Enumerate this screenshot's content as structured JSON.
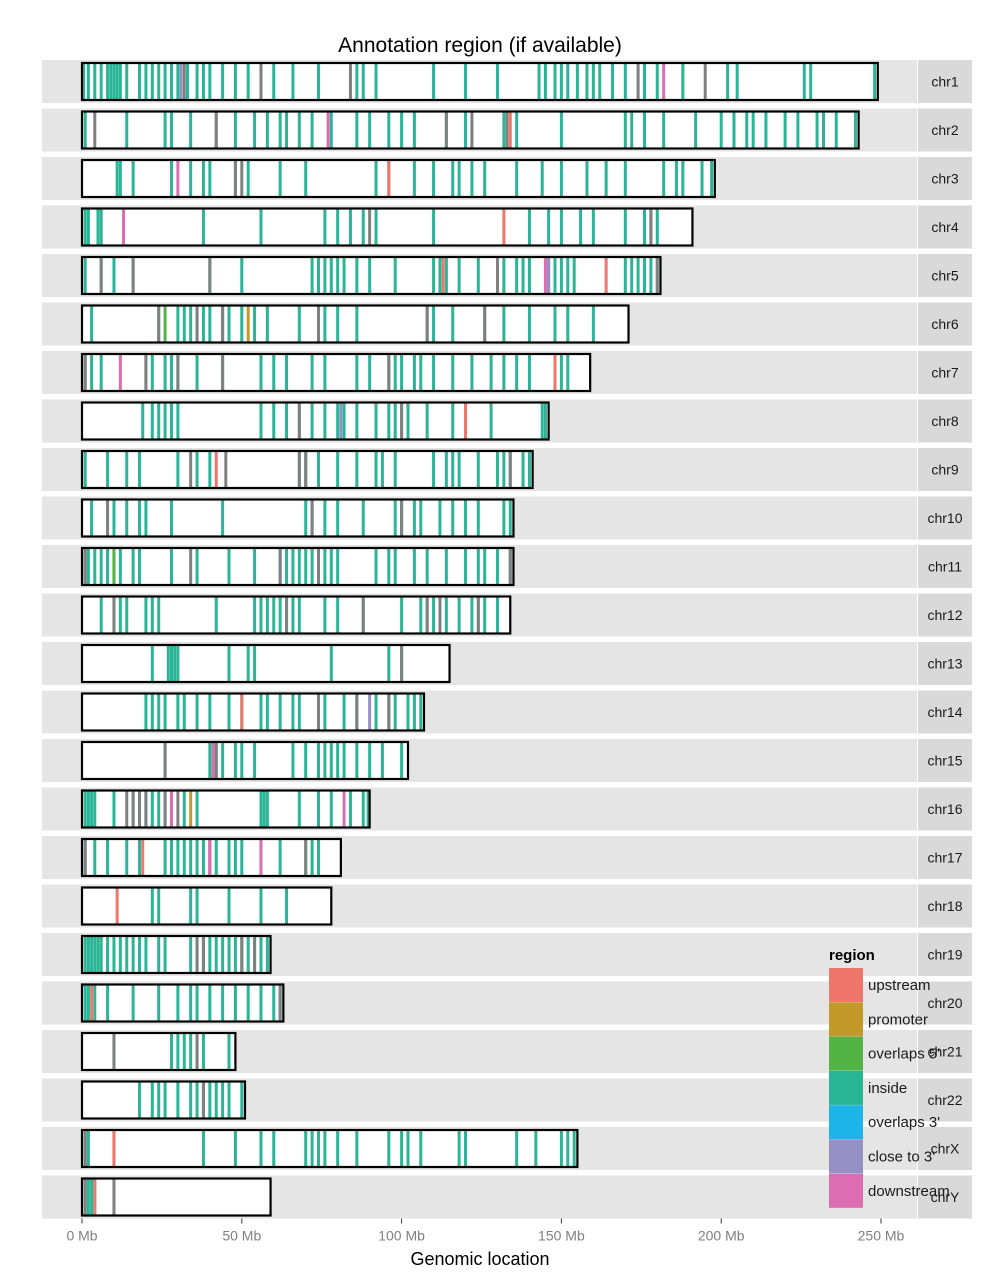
{
  "chart_data": {
    "type": "ideogram",
    "title": "Annotation region (if available)",
    "xlabel": "Genomic location",
    "ylabel": "",
    "xlim": [
      0,
      260
    ],
    "x_ticks": [
      {
        "value": 0,
        "label": "0 Mb"
      },
      {
        "value": 50,
        "label": "50 Mb"
      },
      {
        "value": 100,
        "label": "100 Mb"
      },
      {
        "value": 150,
        "label": "150 Mb"
      },
      {
        "value": 200,
        "label": "200 Mb"
      },
      {
        "value": 250,
        "label": "250 Mb"
      }
    ],
    "legend": {
      "title": "region",
      "position": "bottom-right",
      "entries": [
        {
          "key": "upstream",
          "label": "upstream",
          "color": "#F0766C"
        },
        {
          "key": "promoter",
          "label": "promoter",
          "color": "#C39A2A"
        },
        {
          "key": "overlaps5",
          "label": "overlaps 5'",
          "color": "#53B446"
        },
        {
          "key": "inside",
          "label": "inside",
          "color": "#2BB597"
        },
        {
          "key": "overlaps3",
          "label": "overlaps 3'",
          "color": "#1DB4E9"
        },
        {
          "key": "close3",
          "label": "close to 3'",
          "color": "#9790C4"
        },
        {
          "key": "downstream",
          "label": "downstream",
          "color": "#DB6DB0"
        }
      ]
    },
    "na_color": "#808080",
    "chromosomes": [
      {
        "name": "chr1",
        "length": 249,
        "inside": [
          0.5,
          2,
          4,
          6,
          8,
          9,
          10,
          11,
          12,
          14,
          18,
          20,
          22,
          24,
          26,
          28,
          30,
          33,
          36,
          38,
          40,
          44,
          48,
          52,
          56,
          60,
          66,
          74,
          86,
          88,
          92,
          110,
          120,
          130,
          143,
          145,
          148,
          150,
          152,
          155,
          158,
          160,
          162,
          166,
          170,
          176,
          180,
          188,
          202,
          205,
          226,
          228,
          248
        ],
        "na": [
          32,
          56,
          84,
          174,
          195
        ],
        "upstream": [],
        "promoter": [],
        "overlaps5": [],
        "overlaps3": [],
        "close3": [
          31
        ],
        "downstream": [
          182
        ]
      },
      {
        "name": "chr2",
        "length": 243,
        "inside": [
          1,
          14,
          26,
          28,
          34,
          42,
          48,
          54,
          58,
          62,
          64,
          68,
          72,
          78,
          86,
          90,
          96,
          100,
          104,
          114,
          120,
          132,
          136,
          150,
          170,
          172,
          176,
          182,
          192,
          200,
          204,
          208,
          210,
          214,
          220,
          224,
          230,
          232,
          236,
          242
        ],
        "na": [
          4,
          42,
          114,
          122,
          133
        ],
        "upstream": [
          134
        ],
        "promoter": [],
        "overlaps5": [],
        "overlaps3": [],
        "close3": [],
        "downstream": [
          77
        ]
      },
      {
        "name": "chr3",
        "length": 198,
        "inside": [
          11,
          12,
          16,
          28,
          34,
          38,
          40,
          48,
          52,
          62,
          70,
          92,
          96,
          104,
          110,
          116,
          118,
          122,
          126,
          136,
          144,
          150,
          158,
          164,
          170,
          182,
          186,
          188,
          194,
          197
        ],
        "na": [
          48,
          50
        ],
        "upstream": [
          96
        ],
        "promoter": [],
        "overlaps5": [],
        "overlaps3": [],
        "close3": [],
        "downstream": [
          30
        ]
      },
      {
        "name": "chr4",
        "length": 191,
        "inside": [
          1,
          2,
          5,
          6,
          38,
          56,
          76,
          80,
          84,
          88,
          92,
          110,
          140,
          146,
          150,
          156,
          160,
          170,
          176,
          178,
          180
        ],
        "na": [
          90,
          178
        ],
        "upstream": [
          132
        ],
        "promoter": [],
        "overlaps5": [],
        "overlaps3": [],
        "close3": [],
        "downstream": [
          13
        ]
      },
      {
        "name": "chr5",
        "length": 181,
        "inside": [
          1,
          6,
          10,
          16,
          40,
          50,
          72,
          74,
          76,
          78,
          80,
          82,
          86,
          90,
          98,
          110,
          112,
          114,
          118,
          124,
          132,
          136,
          138,
          140,
          146,
          148,
          150,
          152,
          154,
          170,
          172,
          174,
          176,
          178,
          180
        ],
        "na": [
          6,
          16,
          40,
          130,
          180
        ],
        "upstream": [
          113,
          164
        ],
        "promoter": [],
        "overlaps5": [],
        "overlaps3": [],
        "close3": [
          146
        ],
        "downstream": [
          145
        ]
      },
      {
        "name": "chr6",
        "length": 171,
        "inside": [
          3,
          24,
          30,
          32,
          34,
          36,
          38,
          40,
          44,
          46,
          50,
          54,
          58,
          68,
          74,
          76,
          80,
          86,
          108,
          110,
          116,
          126,
          132,
          140,
          148,
          152,
          160
        ],
        "na": [
          24,
          36,
          44,
          74,
          108,
          126
        ],
        "upstream": [],
        "promoter": [
          52
        ],
        "overlaps5": [
          26
        ],
        "overlaps3": [],
        "close3": [],
        "downstream": []
      },
      {
        "name": "chr7",
        "length": 159,
        "inside": [
          1,
          3,
          6,
          20,
          22,
          26,
          28,
          30,
          36,
          44,
          56,
          60,
          64,
          72,
          76,
          86,
          90,
          96,
          98,
          100,
          104,
          106,
          110,
          116,
          122,
          128,
          132,
          136,
          140,
          148,
          150,
          152
        ],
        "na": [
          1,
          20,
          30,
          44,
          96
        ],
        "upstream": [
          148
        ],
        "promoter": [],
        "overlaps5": [],
        "overlaps3": [],
        "close3": [],
        "downstream": [
          12
        ]
      },
      {
        "name": "chr8",
        "length": 146,
        "inside": [
          19,
          22,
          24,
          26,
          28,
          30,
          56,
          60,
          64,
          68,
          72,
          76,
          80,
          82,
          86,
          92,
          96,
          98,
          100,
          102,
          108,
          116,
          120,
          128,
          144,
          145
        ],
        "na": [
          68,
          100
        ],
        "upstream": [
          120
        ],
        "promoter": [],
        "overlaps5": [],
        "overlaps3": [],
        "close3": [
          81
        ],
        "downstream": []
      },
      {
        "name": "chr9",
        "length": 141,
        "inside": [
          1,
          8,
          14,
          18,
          30,
          36,
          40,
          68,
          70,
          74,
          80,
          86,
          92,
          94,
          98,
          110,
          114,
          116,
          118,
          124,
          130,
          132,
          134,
          138,
          140
        ],
        "na": [
          34,
          45,
          68,
          70,
          134
        ],
        "upstream": [
          42
        ],
        "promoter": [],
        "overlaps5": [],
        "overlaps3": [],
        "close3": [],
        "downstream": []
      },
      {
        "name": "chr10",
        "length": 135,
        "inside": [
          3,
          10,
          14,
          18,
          20,
          28,
          44,
          70,
          72,
          76,
          80,
          88,
          98,
          100,
          104,
          106,
          112,
          116,
          120,
          124,
          132,
          134
        ],
        "na": [
          8,
          72,
          100
        ],
        "upstream": [],
        "promoter": [],
        "overlaps5": [],
        "overlaps3": [],
        "close3": [],
        "downstream": []
      },
      {
        "name": "chr11",
        "length": 135,
        "inside": [
          1,
          2,
          4,
          6,
          8,
          10,
          12,
          16,
          18,
          28,
          36,
          46,
          54,
          62,
          64,
          66,
          68,
          70,
          72,
          74,
          76,
          78,
          80,
          92,
          96,
          98,
          104,
          108,
          114,
          120,
          124,
          126,
          130,
          134
        ],
        "na": [
          1,
          34,
          62,
          74,
          134
        ],
        "upstream": [],
        "promoter": [],
        "overlaps5": [
          10
        ],
        "overlaps3": [],
        "close3": [],
        "downstream": []
      },
      {
        "name": "chr12",
        "length": 134,
        "inside": [
          6,
          10,
          12,
          14,
          20,
          22,
          24,
          42,
          54,
          56,
          58,
          60,
          62,
          64,
          66,
          68,
          76,
          80,
          88,
          100,
          106,
          108,
          110,
          114,
          118,
          122,
          124,
          126,
          130
        ],
        "na": [
          10,
          64,
          88,
          108,
          112,
          124
        ],
        "upstream": [],
        "promoter": [],
        "overlaps5": [],
        "overlaps3": [],
        "close3": [],
        "downstream": []
      },
      {
        "name": "chr13",
        "length": 115,
        "inside": [
          22,
          27,
          28,
          29,
          30,
          46,
          52,
          54,
          78,
          96,
          100
        ],
        "na": [
          100
        ],
        "upstream": [],
        "promoter": [],
        "overlaps5": [],
        "overlaps3": [],
        "close3": [],
        "downstream": []
      },
      {
        "name": "chr14",
        "length": 107,
        "inside": [
          20,
          22,
          24,
          26,
          30,
          32,
          36,
          40,
          46,
          50,
          56,
          58,
          62,
          66,
          68,
          74,
          76,
          82,
          86,
          92,
          96,
          98,
          102,
          104,
          106
        ],
        "na": [
          74,
          86,
          96
        ],
        "upstream": [
          50
        ],
        "promoter": [],
        "overlaps5": [],
        "overlaps3": [],
        "close3": [
          90
        ],
        "downstream": []
      },
      {
        "name": "chr15",
        "length": 102,
        "inside": [
          26,
          40,
          42,
          44,
          48,
          50,
          54,
          66,
          70,
          74,
          76,
          78,
          80,
          82,
          86,
          90,
          94,
          100
        ],
        "na": [
          26,
          42
        ],
        "upstream": [],
        "promoter": [],
        "overlaps5": [],
        "overlaps3": [],
        "close3": [],
        "downstream": [
          41
        ]
      },
      {
        "name": "chr16",
        "length": 90,
        "inside": [
          1,
          2,
          3,
          4,
          10,
          16,
          18,
          20,
          22,
          24,
          26,
          32,
          36,
          56,
          57,
          58,
          68,
          74,
          78,
          84,
          88,
          90
        ],
        "na": [
          14,
          16,
          18,
          20,
          26,
          30
        ],
        "upstream": [],
        "promoter": [
          34
        ],
        "overlaps5": [],
        "overlaps3": [],
        "close3": [],
        "downstream": [
          28,
          82
        ]
      },
      {
        "name": "chr17",
        "length": 81,
        "inside": [
          1,
          4,
          8,
          14,
          18,
          26,
          28,
          30,
          32,
          34,
          36,
          38,
          40,
          42,
          46,
          48,
          50,
          56,
          62,
          70,
          72,
          74
        ],
        "na": [
          1,
          40,
          70
        ],
        "upstream": [
          19
        ],
        "promoter": [],
        "overlaps5": [],
        "overlaps3": [],
        "close3": [],
        "downstream": [
          40,
          56
        ]
      },
      {
        "name": "chr18",
        "length": 78,
        "inside": [
          22,
          24,
          34,
          36,
          46,
          56,
          64
        ],
        "na": [],
        "upstream": [
          11
        ],
        "promoter": [],
        "overlaps5": [],
        "overlaps3": [],
        "close3": [],
        "downstream": []
      },
      {
        "name": "chr19",
        "length": 59,
        "inside": [
          1,
          2,
          3,
          4,
          5,
          6,
          8,
          10,
          12,
          14,
          16,
          18,
          20,
          24,
          26,
          34,
          36,
          38,
          40,
          42,
          44,
          46,
          48,
          50,
          52,
          54,
          56,
          58
        ],
        "na": [
          36,
          38,
          50,
          54
        ],
        "upstream": [],
        "promoter": [],
        "overlaps5": [],
        "overlaps3": [],
        "close3": [],
        "downstream": []
      },
      {
        "name": "chr20",
        "length": 63,
        "inside": [
          1,
          2,
          4,
          8,
          16,
          24,
          30,
          34,
          36,
          40,
          44,
          48,
          52,
          56,
          60,
          62
        ],
        "na": [
          62
        ],
        "upstream": [
          3
        ],
        "promoter": [],
        "overlaps5": [],
        "overlaps3": [],
        "close3": [],
        "downstream": []
      },
      {
        "name": "chr21",
        "length": 48,
        "inside": [
          10,
          28,
          30,
          32,
          34,
          36,
          38,
          46
        ],
        "na": [
          10,
          36
        ],
        "upstream": [],
        "promoter": [],
        "overlaps5": [],
        "overlaps3": [],
        "close3": [],
        "downstream": []
      },
      {
        "name": "chr22",
        "length": 51,
        "inside": [
          18,
          22,
          24,
          26,
          30,
          34,
          36,
          38,
          40,
          42,
          44,
          46,
          50
        ],
        "na": [
          38
        ],
        "upstream": [],
        "promoter": [],
        "overlaps5": [],
        "overlaps3": [],
        "close3": [],
        "downstream": []
      },
      {
        "name": "chrX",
        "length": 155,
        "inside": [
          1,
          2,
          10,
          38,
          48,
          56,
          60,
          70,
          72,
          74,
          76,
          80,
          86,
          96,
          100,
          102,
          106,
          118,
          120,
          136,
          142,
          150,
          152,
          154
        ],
        "na": [
          1
        ],
        "upstream": [
          10
        ],
        "promoter": [],
        "overlaps5": [],
        "overlaps3": [],
        "close3": [],
        "downstream": []
      },
      {
        "name": "chrY",
        "length": 59,
        "inside": [
          1,
          2,
          3,
          4
        ],
        "na": [
          1,
          10
        ],
        "upstream": [
          4
        ],
        "promoter": [],
        "overlaps5": [],
        "overlaps3": [],
        "close3": [],
        "downstream": []
      }
    ]
  }
}
